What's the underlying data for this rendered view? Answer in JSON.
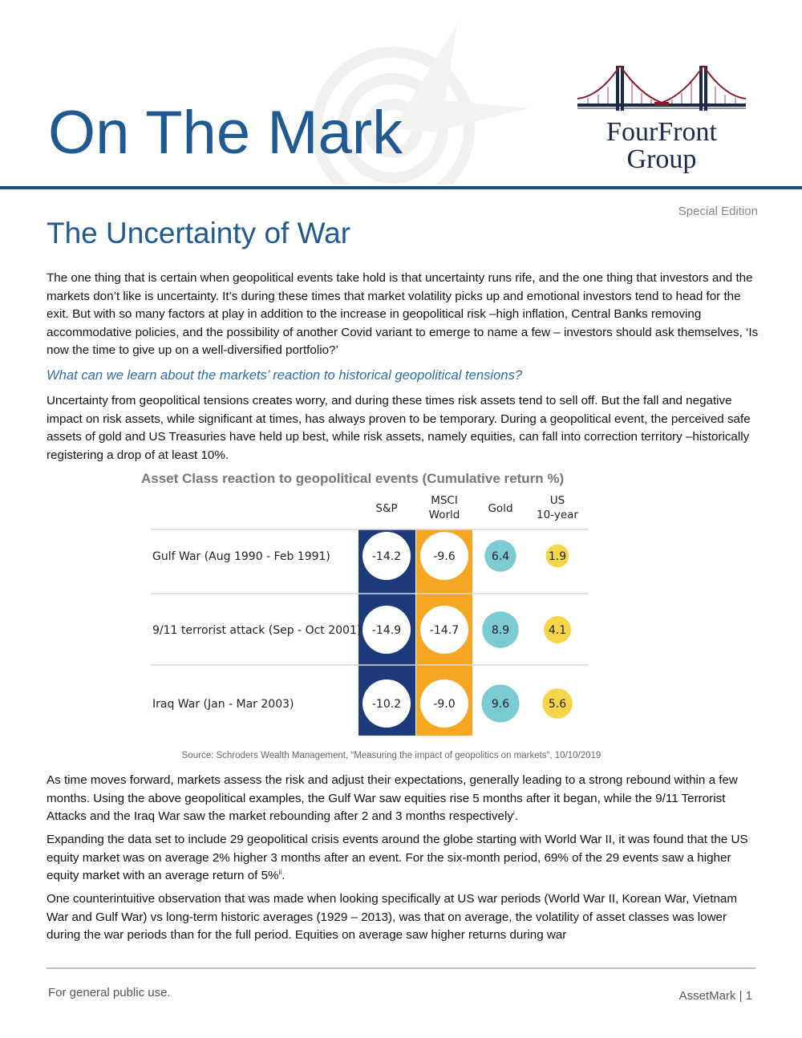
{
  "header": {
    "masthead": "On The Mark",
    "logo_line1": "FourFront",
    "logo_line2": "Group",
    "edition": "Special Edition"
  },
  "colors": {
    "brand_blue": "#1f5a92",
    "sp_column": "#1d3b7a",
    "msci_column": "#f5a623",
    "gold_circle": "#7ccbd3",
    "treasury_circle": "#f6d548"
  },
  "article": {
    "title": "The Uncertainty of War",
    "para1": "The one thing that is certain when geopolitical events take hold is that uncertainty runs rife, and the one thing that investors and the markets don’t like is uncertainty. It’s during these times that market volatility picks up and emotional investors tend to head for the exit. But with so many factors at play in addition to the increase in geopolitical risk –high inflation, Central Banks removing accommodative policies, and the possibility of another Covid variant to emerge to name a few – investors should ask themselves, ‘Is now the time to give up on a well-diversified portfolio?’",
    "subhead": "What can we learn about the markets’ reaction to historical geopolitical tensions?",
    "para2": "Uncertainty from geopolitical tensions creates worry, and during these times risk assets tend to sell off. But the fall and negative impact on risk assets, while significant at times, has always proven to be temporary. During a geopolitical event, the perceived safe assets of gold and US Treasuries have held up best, while risk assets, namely equities, can fall into correction territory –historically registering a drop of at least 10%.",
    "chart_title": "Asset Class reaction to geopolitical events (Cumulative return %)",
    "source": "Source: Schroders Wealth Management, “Measuring the impact of geopolitics on markets”, 10/10/2019",
    "para3": "As time moves forward, markets assess the risk and adjust their expectations, generally leading to a strong rebound within a few months. Using the above geopolitical examples, the Gulf War saw equities rise 5 months after it began, while the 9/11 Terrorist Attacks and the Iraq War saw the market rebounding after 2 and 3 months respectively",
    "para3_note": "i",
    "para3_end": ".",
    "para4": "Expanding the data set to include 29 geopolitical crisis events around the globe starting with World War II, it was found that the US equity market was on average 2% higher 3 months after an event. For the six-month period, 69% of the 29 events saw a higher equity market with an average return of 5%",
    "para4_note": "ii",
    "para4_end": ".",
    "para5": "One counterintuitive observation that was made when looking specifically at US war periods (World War II, Korean War, Vietnam War and Gulf War) vs long-term historic averages (1929 – 2013), was that on average, the volatility of asset classes was lower during the war periods than for the full period. Equities on average saw higher returns during war"
  },
  "chart_data": {
    "type": "table",
    "title": "Asset Class reaction to geopolitical events (Cumulative return %)",
    "columns": [
      "S&P",
      "MSCI World",
      "Gold",
      "US 10-year"
    ],
    "column_lines": [
      [
        "S&P"
      ],
      [
        "MSCI",
        "World"
      ],
      [
        "Gold"
      ],
      [
        "US",
        "10-year"
      ]
    ],
    "rows": [
      {
        "label": "Gulf War (Aug 1990 - Feb 1991)",
        "values": [
          -14.2,
          -9.6,
          6.4,
          1.9
        ],
        "display": [
          "-14.2",
          "-9.6",
          "6.4",
          "1.9"
        ]
      },
      {
        "label": "9/11 terrorist attack (Sep - Oct 2001)",
        "values": [
          -14.9,
          -14.7,
          8.9,
          4.1
        ],
        "display": [
          "-14.9",
          "-14.7",
          "8.9",
          "4.1"
        ]
      },
      {
        "label": "Iraq War (Jan - Mar 2003)",
        "values": [
          -10.2,
          -9.0,
          9.6,
          5.6
        ],
        "display": [
          "-10.2",
          "-9.0",
          "9.6",
          "5.6"
        ]
      }
    ]
  },
  "footer": {
    "left": "For general public use.",
    "right": "AssetMark | 1"
  }
}
